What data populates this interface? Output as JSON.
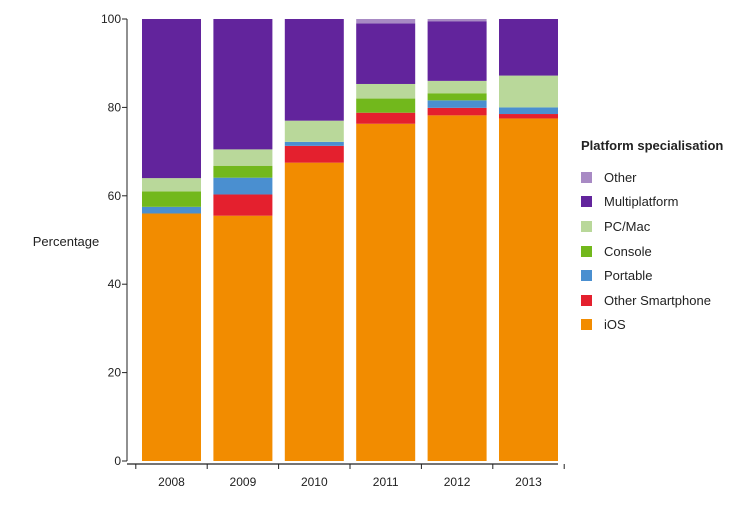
{
  "chart_data": {
    "type": "bar",
    "stacked": true,
    "categories": [
      "2008",
      "2009",
      "2010",
      "2011",
      "2012",
      "2013"
    ],
    "ylabel": "Percentage",
    "xlabel": "",
    "ylim": [
      0,
      100
    ],
    "yticks": [
      0,
      20,
      40,
      60,
      80,
      100
    ],
    "grid": false,
    "legend_title": "Platform specialisation",
    "legend_position": "right",
    "series": [
      {
        "name": "iOS",
        "color": "#f28c00",
        "values": [
          56.0,
          55.5,
          67.5,
          76.3,
          78.2,
          77.5
        ]
      },
      {
        "name": "Other Smartphone",
        "color": "#e4202e",
        "values": [
          0,
          4.8,
          3.8,
          2.5,
          1.7,
          1.0
        ]
      },
      {
        "name": "Portable",
        "color": "#4a8fd0",
        "values": [
          1.5,
          3.8,
          0.9,
          0,
          1.7,
          1.5
        ]
      },
      {
        "name": "Console",
        "color": "#72b81c",
        "values": [
          3.5,
          2.7,
          0,
          3.2,
          1.6,
          0
        ]
      },
      {
        "name": "PC/Mac",
        "color": "#b9d89a",
        "values": [
          3.0,
          3.7,
          4.8,
          3.3,
          2.8,
          7.2
        ]
      },
      {
        "name": "Multiplatform",
        "color": "#62249c",
        "values": [
          36.0,
          29.5,
          23.0,
          13.7,
          13.5,
          12.8
        ]
      },
      {
        "name": "Other",
        "color": "#a88ac4",
        "values": [
          0,
          0,
          0,
          1.0,
          0.5,
          0
        ]
      }
    ]
  }
}
